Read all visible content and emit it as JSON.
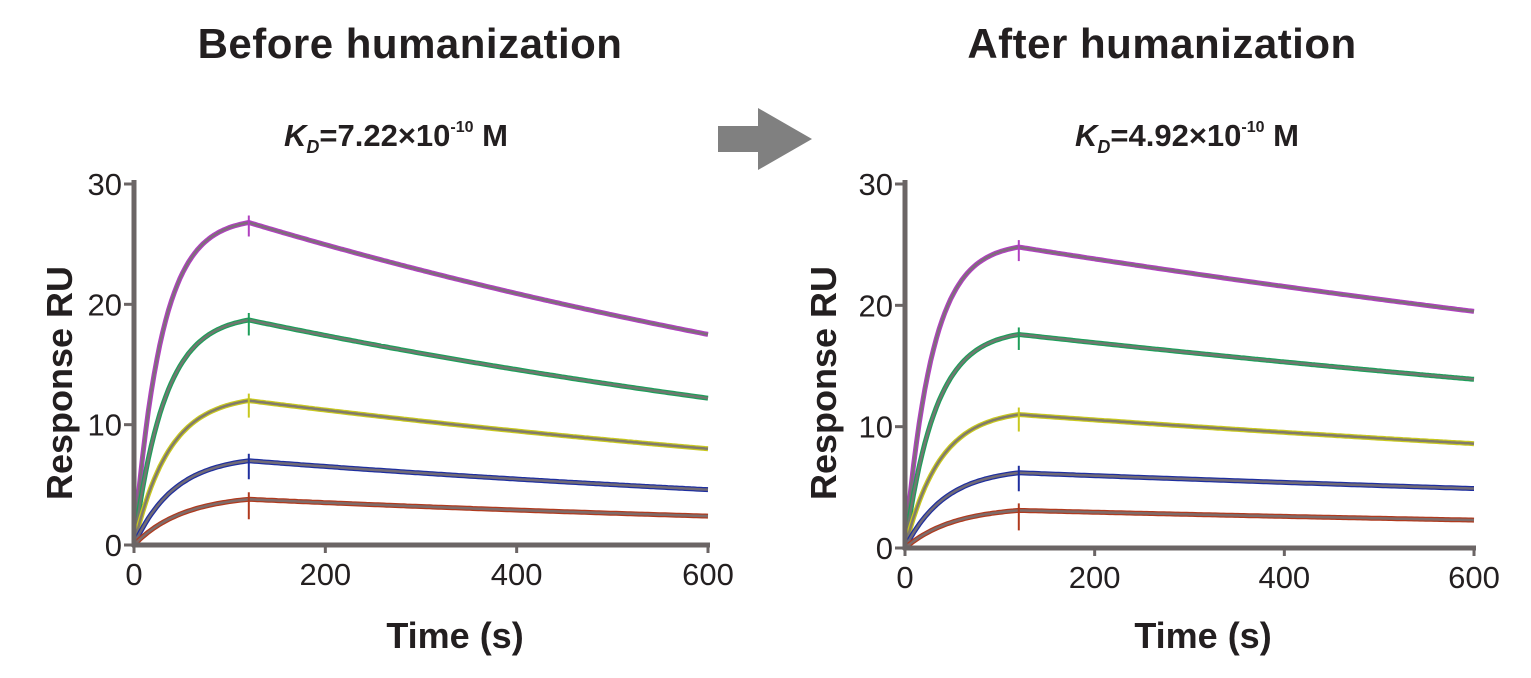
{
  "arrow_color": "#808080",
  "chart_data": [
    {
      "type": "line",
      "title": "Before humanization",
      "subtitle": {
        "symbol": "K",
        "subscript": "D",
        "mantissa": "=7.22×10",
        "exponent": "-10",
        "unit": " M"
      },
      "xlabel": "Time (s)",
      "ylabel": "Response RU",
      "xlim": [
        0,
        600
      ],
      "ylim": [
        0,
        30
      ],
      "xticks": [
        "0",
        "200",
        "400",
        "600"
      ],
      "yticks": [
        "0",
        "10",
        "20",
        "30"
      ],
      "grid": false,
      "fit_color": "#7a7272",
      "series": [
        {
          "color": "#b040c0",
          "x": [
            0,
            120,
            600
          ],
          "y": [
            0,
            26.8,
            17.5
          ]
        },
        {
          "color": "#1e9e5a",
          "x": [
            0,
            120,
            600
          ],
          "y": [
            0,
            18.7,
            12.2
          ]
        },
        {
          "color": "#c8c81e",
          "x": [
            0,
            120,
            600
          ],
          "y": [
            0,
            12.0,
            8.0
          ]
        },
        {
          "color": "#1f2f9f",
          "x": [
            0,
            120,
            600
          ],
          "y": [
            0,
            7.0,
            4.6
          ]
        },
        {
          "color": "#b03a1e",
          "x": [
            0,
            120,
            600
          ],
          "y": [
            0,
            3.8,
            2.4
          ]
        }
      ]
    },
    {
      "type": "line",
      "title": "After humanization",
      "subtitle": {
        "symbol": "K",
        "subscript": "D",
        "mantissa": "=4.92×10",
        "exponent": "-10",
        "unit": " M"
      },
      "xlabel": "Time (s)",
      "ylabel": "Response RU",
      "xlim": [
        0,
        600
      ],
      "ylim": [
        0,
        30
      ],
      "xticks": [
        "0",
        "200",
        "400",
        "600"
      ],
      "yticks": [
        "0",
        "10",
        "20",
        "30"
      ],
      "grid": false,
      "fit_color": "#7a7272",
      "series": [
        {
          "color": "#b040c0",
          "x": [
            0,
            120,
            600
          ],
          "y": [
            0,
            24.8,
            19.5
          ]
        },
        {
          "color": "#1e9e5a",
          "x": [
            0,
            120,
            600
          ],
          "y": [
            0,
            17.6,
            13.9
          ]
        },
        {
          "color": "#c8c81e",
          "x": [
            0,
            120,
            600
          ],
          "y": [
            0,
            11.0,
            8.6
          ]
        },
        {
          "color": "#1f2f9f",
          "x": [
            0,
            120,
            600
          ],
          "y": [
            0,
            6.2,
            4.9
          ]
        },
        {
          "color": "#b03a1e",
          "x": [
            0,
            120,
            600
          ],
          "y": [
            0,
            3.1,
            2.3
          ]
        }
      ]
    }
  ]
}
